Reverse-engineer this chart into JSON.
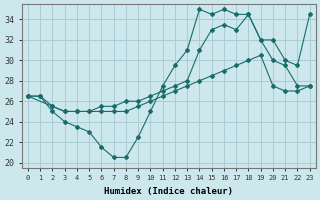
{
  "xlabel": "Humidex (Indice chaleur)",
  "ylabel": "",
  "bg_color": "#cce8ec",
  "grid_color": "#aaccd4",
  "line_color": "#1a6b6b",
  "xlim": [
    -0.5,
    23.5
  ],
  "ylim": [
    19.5,
    35.5
  ],
  "xticks": [
    0,
    1,
    2,
    3,
    4,
    5,
    6,
    7,
    8,
    9,
    10,
    11,
    12,
    13,
    14,
    15,
    16,
    17,
    18,
    19,
    20,
    21,
    22,
    23
  ],
  "yticks": [
    20,
    22,
    24,
    26,
    28,
    30,
    32,
    34
  ],
  "line1_x": [
    0,
    1,
    2,
    3,
    4,
    5,
    6,
    7,
    8,
    9,
    10,
    11,
    12,
    13,
    14,
    15,
    16,
    17,
    18,
    19,
    20,
    21,
    22,
    23
  ],
  "line1_y": [
    26.5,
    26.5,
    25,
    24,
    23.5,
    23,
    21.5,
    20.5,
    20.5,
    22.5,
    25,
    27.5,
    29.5,
    31,
    35,
    34.5,
    35,
    34.5,
    34.5,
    32,
    30,
    29.5,
    27.5,
    27.5
  ],
  "line2_x": [
    0,
    2,
    3,
    4,
    5,
    6,
    7,
    8,
    9,
    10,
    11,
    12,
    13,
    14,
    15,
    16,
    17,
    18,
    19,
    20,
    21,
    22,
    23
  ],
  "line2_y": [
    26.5,
    25.5,
    25,
    25,
    25,
    25.5,
    25.5,
    26,
    26,
    26.5,
    27,
    27.5,
    28,
    31,
    33,
    33.5,
    33,
    34.5,
    32,
    32,
    30,
    29.5,
    34.5
  ],
  "line3_x": [
    0,
    1,
    2,
    3,
    4,
    5,
    6,
    7,
    8,
    9,
    10,
    11,
    12,
    13,
    14,
    15,
    16,
    17,
    18,
    19,
    20,
    21,
    22,
    23
  ],
  "line3_y": [
    26.5,
    26.5,
    25.5,
    25,
    25,
    25,
    25,
    25,
    25,
    25.5,
    26,
    26.5,
    27,
    27.5,
    28,
    28.5,
    29,
    29.5,
    30,
    30.5,
    27.5,
    27,
    27,
    27.5
  ],
  "marker": "D",
  "markersize": 2.0
}
